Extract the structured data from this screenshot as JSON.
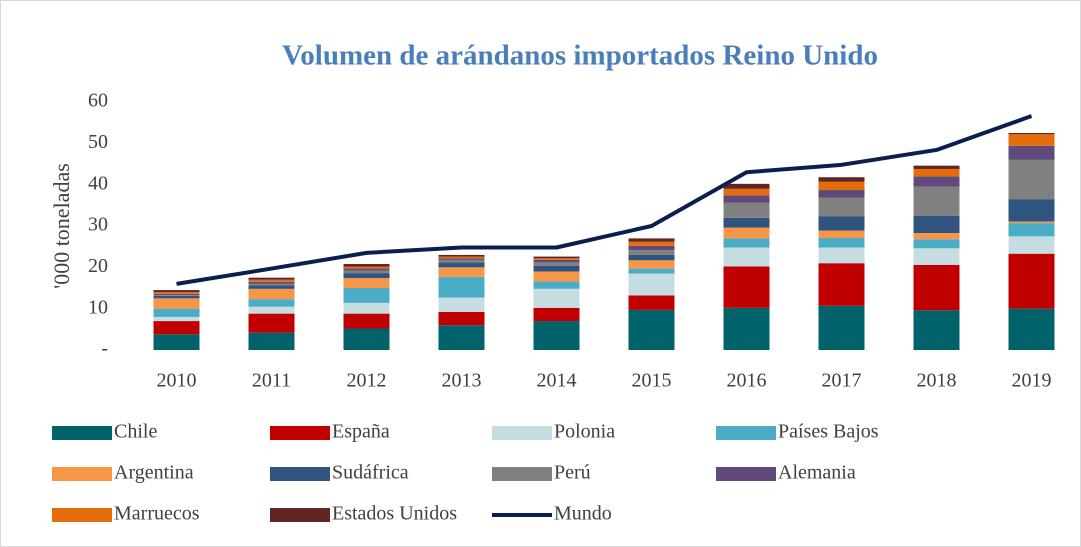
{
  "chart_data": {
    "type": "bar",
    "stacked": true,
    "title": "Volumen de arándanos importados Reino Unido",
    "y_label": "'000 toneladas",
    "categories": [
      "2010",
      "2011",
      "2012",
      "2013",
      "2014",
      "2015",
      "2016",
      "2017",
      "2018",
      "2019"
    ],
    "ylim": [
      0,
      60
    ],
    "yticks": [
      {
        "value": 0,
        "label": "-"
      },
      10,
      20,
      30,
      40,
      50,
      60
    ],
    "grid": false,
    "legend": "bottom",
    "series": [
      {
        "name": "Chile",
        "color": "#00626a",
        "values": [
          3.8,
          4.2,
          5.2,
          6.0,
          7.0,
          9.7,
          10.2,
          10.7,
          9.6,
          10.0
        ]
      },
      {
        "name": "España",
        "color": "#c00000",
        "values": [
          3.2,
          4.6,
          3.6,
          3.2,
          3.2,
          3.5,
          10.0,
          10.3,
          11.0,
          13.3
        ]
      },
      {
        "name": "Polonia",
        "color": "#c5dde0",
        "values": [
          1.0,
          1.7,
          2.6,
          3.5,
          4.6,
          5.3,
          4.6,
          3.8,
          4.0,
          4.2
        ]
      },
      {
        "name": "Países Bajos",
        "color": "#4bacc6",
        "values": [
          2.0,
          1.8,
          3.6,
          5.0,
          1.8,
          1.2,
          2.2,
          2.3,
          2.2,
          3.2
        ]
      },
      {
        "name": "Argentina",
        "color": "#f79646",
        "values": [
          2.5,
          2.5,
          2.4,
          2.3,
          2.4,
          2.0,
          2.6,
          1.8,
          1.5,
          0.4
        ]
      },
      {
        "name": "Sudáfrica",
        "color": "#2f5480",
        "values": [
          0.6,
          0.8,
          1.2,
          1.2,
          1.4,
          1.3,
          2.4,
          3.4,
          4.2,
          5.4
        ]
      },
      {
        "name": "Perú",
        "color": "#808080",
        "values": [
          0.2,
          0.4,
          0.6,
          0.6,
          0.8,
          1.2,
          3.6,
          4.6,
          7.0,
          9.5
        ]
      },
      {
        "name": "Alemania",
        "color": "#604a7b",
        "values": [
          0.3,
          0.5,
          0.5,
          0.4,
          0.6,
          1.0,
          1.8,
          1.8,
          2.5,
          3.4
        ]
      },
      {
        "name": "Marruecos",
        "color": "#e46c0a",
        "values": [
          0.4,
          0.5,
          0.5,
          0.4,
          0.4,
          1.0,
          1.6,
          2.0,
          1.8,
          2.8
        ]
      },
      {
        "name": "Estados Unidos",
        "color": "#632523",
        "values": [
          0.5,
          0.5,
          0.6,
          0.4,
          0.4,
          0.8,
          1.2,
          1.1,
          0.8,
          0.3
        ]
      },
      {
        "name": "Mundo",
        "color": "#0b1f4f",
        "type": "line",
        "values": [
          16.0,
          19.7,
          23.5,
          24.8,
          24.8,
          30.0,
          43.0,
          44.8,
          48.4,
          56.6
        ]
      }
    ]
  }
}
